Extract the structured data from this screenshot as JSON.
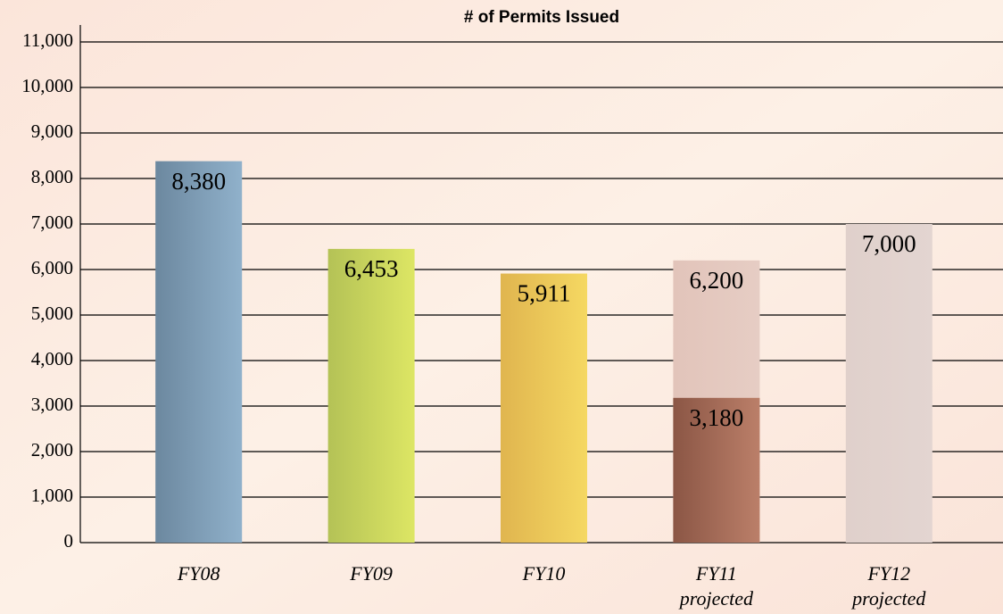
{
  "chart_data": {
    "type": "bar",
    "title": "# of Permits Issued",
    "categories": [
      [
        "FY08"
      ],
      [
        "FY09"
      ],
      [
        "FY10"
      ],
      [
        "FY11",
        "projected"
      ],
      [
        "FY12",
        "projected"
      ]
    ],
    "overlap": true,
    "series": [
      {
        "values": [
          8380,
          6453,
          5911,
          6200,
          7000
        ],
        "value_labels": [
          "8,380",
          "6,453",
          "5,911",
          "6,200",
          "7,000"
        ],
        "colors": [
          [
            "#6c889f",
            "#90b1cb"
          ],
          [
            "#b4c256",
            "#dde664"
          ],
          [
            "#e0b54f",
            "#f5d862"
          ],
          [
            "#e2c4ba",
            "#e6cdc4"
          ],
          [
            "#e0d0cb",
            "#e3d5d1"
          ]
        ]
      },
      {
        "values": [
          null,
          null,
          null,
          3180,
          null
        ],
        "value_labels": [
          null,
          null,
          null,
          "3,180",
          null
        ],
        "colors": [
          null,
          null,
          null,
          [
            "#8b5645",
            "#bb7f69"
          ],
          null
        ]
      }
    ],
    "ylim": [
      0,
      11000
    ],
    "yticks": [
      0,
      {
        "value": 1000,
        "label": "1,000"
      },
      {
        "value": 2000,
        "label": "2,000"
      },
      {
        "value": 3000,
        "label": "3,000"
      },
      {
        "value": 4000,
        "label": "4,000"
      },
      {
        "value": 5000,
        "label": "5,000"
      },
      {
        "value": 6000,
        "label": "6,000"
      },
      {
        "value": 7000,
        "label": "7,000"
      },
      {
        "value": 8000,
        "label": "8,000"
      },
      {
        "value": 9000,
        "label": "9,000"
      },
      {
        "value": 10000,
        "label": "10,000"
      },
      {
        "value": 11000,
        "label": "11,000"
      }
    ],
    "grid": true
  }
}
